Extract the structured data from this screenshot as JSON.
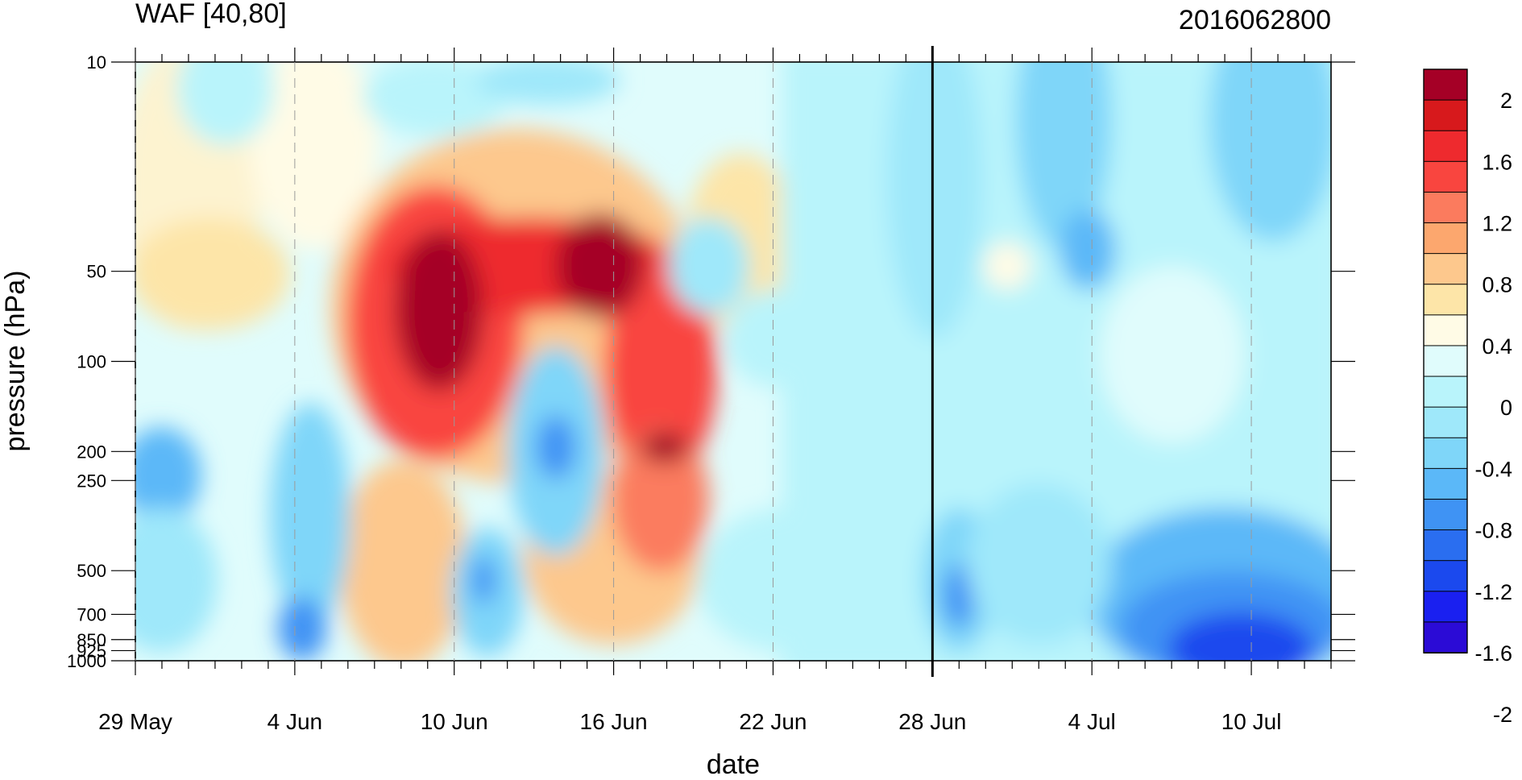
{
  "chart_data": {
    "type": "heatmap",
    "title": "WAF [40,80]",
    "right_title": "2016062800",
    "xlabel": "date",
    "ylabel": "pressure (hPa)",
    "x_tick_labels": [
      "29 May",
      "4 Jun",
      "10 Jun",
      "16 Jun",
      "22 Jun",
      "28 Jun",
      "4 Jul",
      "10 Jul"
    ],
    "x_tick_days": [
      0,
      6,
      12,
      18,
      24,
      30,
      36,
      42
    ],
    "x_range_days": [
      0,
      45
    ],
    "marker_day": 30,
    "y_tick_labels": [
      "10",
      "50",
      "100",
      "200",
      "250",
      "500",
      "700",
      "850",
      "925",
      "1000"
    ],
    "y_tick_values": [
      10,
      50,
      100,
      200,
      250,
      500,
      700,
      850,
      925,
      1000
    ],
    "y_range": [
      10,
      1000
    ],
    "y_scale": "log",
    "colorbar": {
      "tick_labels": [
        "2",
        "1.6",
        "1.2",
        "0.8",
        "0.4",
        "0",
        "-0.4",
        "-0.8",
        "-1.2",
        "-1.6",
        "-2"
      ],
      "colors": [
        "#a50026",
        "#d7191c",
        "#ee2a2e",
        "#f9453f",
        "#fb7b5e",
        "#fca76e",
        "#fdc88d",
        "#fde5a8",
        "#fffbe6",
        "#e0fcfc",
        "#b9f4fb",
        "#9fe8fa",
        "#7fd6f9",
        "#5bb8f8",
        "#3f93f4",
        "#2a6ef0",
        "#1b49ee",
        "#1a20f0",
        "#2b0bd6"
      ]
    },
    "grid": false
  }
}
